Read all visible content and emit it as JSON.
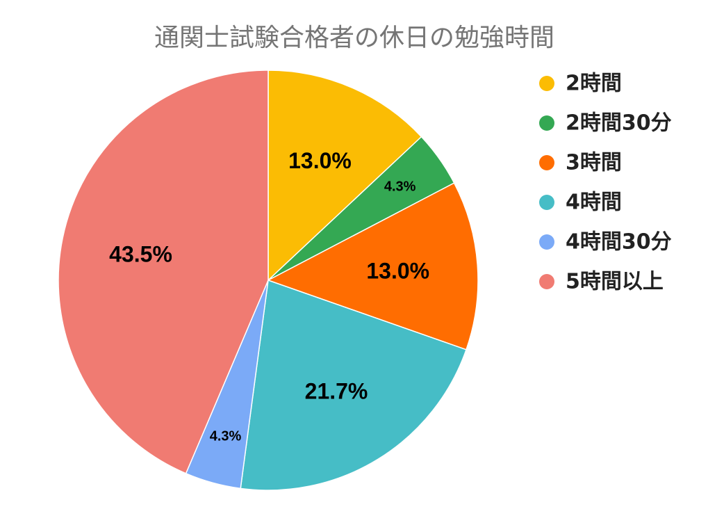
{
  "chart_data": {
    "type": "pie",
    "title": "通関士試験合格者の休日の勉強時間",
    "categories": [
      "2時間",
      "2時間30分",
      "3時間",
      "4時間",
      "4時間30分",
      "5時間以上"
    ],
    "values": [
      13.0,
      4.3,
      13.0,
      21.7,
      4.3,
      43.5
    ],
    "value_labels": [
      "13.0%",
      "4.3%",
      "13.0%",
      "21.7%",
      "4.3%",
      "43.5%"
    ],
    "colors": [
      "#fbbc04",
      "#34a853",
      "#ff6d01",
      "#46bdc6",
      "#7baaf7",
      "#f07b72"
    ],
    "legend": "right",
    "start": "top, clockwise"
  }
}
